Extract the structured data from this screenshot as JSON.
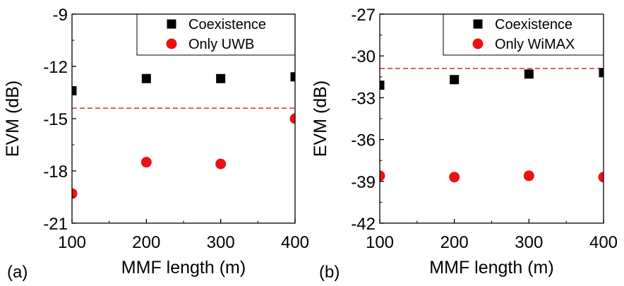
{
  "chart_data": [
    {
      "type": "scatter",
      "panel_label": "(a)",
      "xlabel": "MMF length  (m)",
      "ylabel": "EVM (dB)",
      "xlim": [
        100,
        400
      ],
      "ylim": [
        -21,
        -9
      ],
      "xticks": [
        100,
        200,
        300,
        400
      ],
      "yticks": [
        -21,
        -18,
        -15,
        -12,
        -9
      ],
      "x_tick_labels": [
        "100",
        "200",
        "300",
        "400"
      ],
      "y_tick_labels": [
        "-21",
        "-18",
        "-15",
        "-12",
        "-9"
      ],
      "legend_position": "top-right",
      "grid": false,
      "series": [
        {
          "name": "Coexistence",
          "marker": "square",
          "color": "#000000",
          "x": [
            100,
            200,
            300,
            400
          ],
          "y": [
            -13.4,
            -12.7,
            -12.7,
            -12.6
          ]
        },
        {
          "name": "Only UWB",
          "marker": "circle",
          "color": "#ee1111",
          "x": [
            100,
            200,
            300,
            400
          ],
          "y": [
            -19.3,
            -17.5,
            -17.6,
            -15.0
          ]
        }
      ],
      "reference_line": {
        "y": -14.4,
        "style": "dashed",
        "color": "#cc4444"
      }
    },
    {
      "type": "scatter",
      "panel_label": "(b)",
      "xlabel": "MMF length  (m)",
      "ylabel": "EVM (dB)",
      "xlim": [
        100,
        400
      ],
      "ylim": [
        -42,
        -27
      ],
      "xticks": [
        100,
        200,
        300,
        400
      ],
      "yticks": [
        -42,
        -39,
        -36,
        -33,
        -30,
        -27
      ],
      "x_tick_labels": [
        "100",
        "200",
        "300",
        "400"
      ],
      "y_tick_labels": [
        "-42",
        "-39",
        "-36",
        "-33",
        "-30",
        "-27"
      ],
      "legend_position": "top-right",
      "grid": false,
      "series": [
        {
          "name": "Coexistence",
          "marker": "square",
          "color": "#000000",
          "x": [
            100,
            200,
            300,
            400
          ],
          "y": [
            -32.1,
            -31.7,
            -31.3,
            -31.2
          ]
        },
        {
          "name": "Only WiMAX",
          "marker": "circle",
          "color": "#ee1111",
          "x": [
            100,
            200,
            300,
            400
          ],
          "y": [
            -38.6,
            -38.7,
            -38.6,
            -38.7
          ]
        }
      ],
      "reference_line": {
        "y": -30.9,
        "style": "dashed",
        "color": "#cc4444"
      }
    }
  ]
}
